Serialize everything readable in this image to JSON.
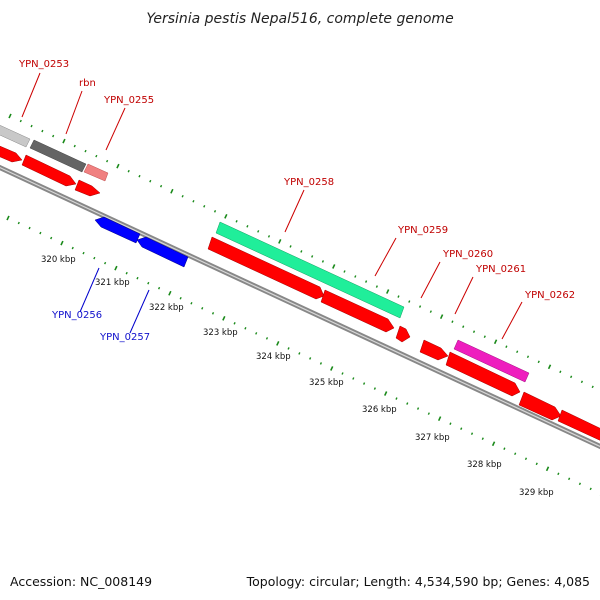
{
  "title": "Yersinia pestis Nepal516, complete genome",
  "footer": {
    "accession": "Accession: NC_008149",
    "summary": "Topology: circular; Length: 4,534,590 bp; Genes: 4,085"
  },
  "colors": {
    "backbone": "#888888",
    "feature_red": "#ff0000",
    "feature_blue": "#0000ff",
    "feature_gray_light": "#c8c8c8",
    "feature_gray_dark": "#646464",
    "feature_pink": "#f08080",
    "feature_green": "#20ee9a",
    "feature_magenta": "#ee1ebe",
    "dots": "#1a8a1a",
    "label_red": "#cc0000",
    "label_blue": "#0000cc"
  },
  "gene_labels": [
    {
      "id": "YPN_0253",
      "color": "red"
    },
    {
      "id": "rbn",
      "color": "red"
    },
    {
      "id": "YPN_0255",
      "color": "red"
    },
    {
      "id": "YPN_0258",
      "color": "red"
    },
    {
      "id": "YPN_0259",
      "color": "red"
    },
    {
      "id": "YPN_0260",
      "color": "red"
    },
    {
      "id": "YPN_0261",
      "color": "red"
    },
    {
      "id": "YPN_0262",
      "color": "red"
    },
    {
      "id": "YPN_0256",
      "color": "blue"
    },
    {
      "id": "YPN_0257",
      "color": "blue"
    }
  ],
  "ticks": [
    "320 kbp",
    "321 kbp",
    "322 kbp",
    "323 kbp",
    "324 kbp",
    "325 kbp",
    "326 kbp",
    "327 kbp",
    "328 kbp",
    "329 kbp"
  ]
}
